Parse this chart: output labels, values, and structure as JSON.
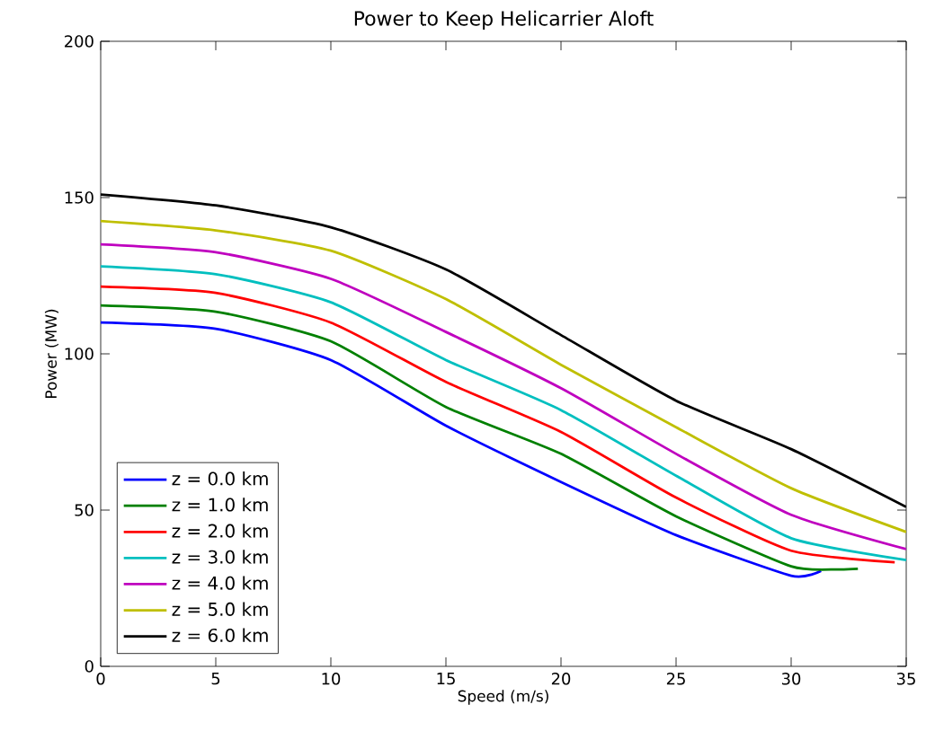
{
  "chart_data": {
    "type": "line",
    "title": "Power to Keep Helicarrier Aloft",
    "xlabel": "Speed (m/s)",
    "ylabel": "Power (MW)",
    "xlim": [
      0,
      35
    ],
    "ylim": [
      0,
      200
    ],
    "xticks": [
      0,
      5,
      10,
      15,
      20,
      25,
      30,
      35
    ],
    "yticks": [
      0,
      50,
      100,
      150,
      200
    ],
    "grid": false,
    "legend": "bottom left",
    "marker": "none",
    "line_style": "solid",
    "series": [
      {
        "name": "z = 0.0 km",
        "color": "#0000ff",
        "x": [
          0,
          5,
          10,
          15,
          20,
          25,
          30,
          31.3
        ],
        "values": [
          110,
          108,
          98,
          77,
          59,
          42,
          29,
          30.5
        ]
      },
      {
        "name": "z = 1.0 km",
        "color": "#008000",
        "x": [
          0,
          5,
          10,
          15,
          20,
          25,
          30,
          32,
          32.9
        ],
        "values": [
          115.5,
          113.5,
          104,
          83,
          68,
          48,
          32,
          31,
          31.2
        ]
      },
      {
        "name": "z = 2.0 km",
        "color": "#ff0000",
        "x": [
          0,
          5,
          10,
          15,
          20,
          25,
          30,
          34.5
        ],
        "values": [
          121.5,
          119.5,
          110,
          91,
          75,
          54,
          37,
          33.3
        ]
      },
      {
        "name": "z = 3.0 km",
        "color": "#00bfbf",
        "x": [
          0,
          5,
          10,
          15,
          20,
          25,
          30,
          35
        ],
        "values": [
          128,
          125.5,
          116.5,
          98,
          82,
          61,
          41,
          34
        ]
      },
      {
        "name": "z = 4.0 km",
        "color": "#bf00bf",
        "x": [
          0,
          5,
          10,
          15,
          20,
          25,
          30,
          35
        ],
        "values": [
          135,
          132.5,
          124,
          107,
          89,
          68,
          48.5,
          37.5
        ]
      },
      {
        "name": "z = 5.0 km",
        "color": "#bfbf00",
        "x": [
          0,
          5,
          10,
          15,
          20,
          25,
          30,
          35
        ],
        "values": [
          142.5,
          139.5,
          133,
          117.5,
          96.5,
          76.5,
          57,
          43
        ]
      },
      {
        "name": "z = 6.0 km",
        "color": "#000000",
        "x": [
          0,
          5,
          10,
          15,
          20,
          25,
          30,
          35
        ],
        "values": [
          151,
          147.5,
          140.5,
          127,
          106,
          85,
          69.5,
          51
        ]
      }
    ]
  }
}
